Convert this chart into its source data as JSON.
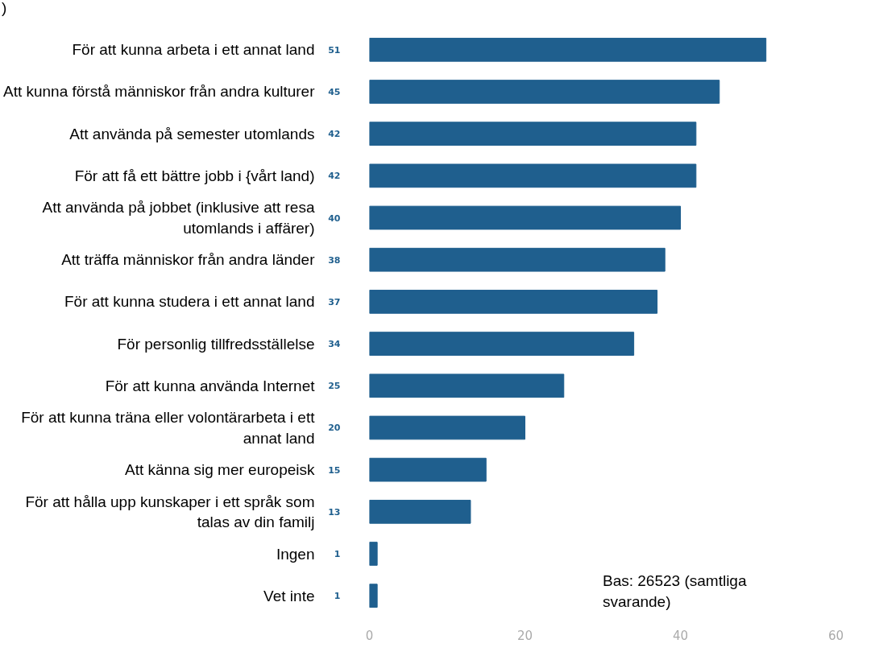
{
  "chart_data": {
    "type": "bar",
    "orientation": "horizontal",
    "title": ")",
    "categories": [
      "För att kunna arbeta i ett annat land",
      "Att kunna förstå människor från andra kulturer",
      "Att använda på semester utomlands",
      "För att få ett bättre jobb i {vårt land)",
      "Att använda på jobbet (inklusive att resa utomlands i affärer)",
      "Att träffa människor från andra länder",
      "För att kunna studera i ett annat land",
      "För personlig tillfredsställelse",
      "För att kunna använda Internet",
      "För att kunna träna eller volontärarbeta i ett annat land",
      "Att känna sig mer europeisk",
      "För att hålla upp kunskaper i ett språk som talas av din familj",
      "Ingen",
      "Vet inte"
    ],
    "values": [
      51,
      45,
      42,
      42,
      40,
      38,
      37,
      34,
      25,
      20,
      15,
      13,
      1,
      1
    ],
    "color": "#1f5f8e",
    "data_labels": true,
    "xlim": [
      0,
      60
    ],
    "xticks": [
      0,
      20,
      40,
      60
    ],
    "grid": false,
    "annotations": [
      "Bas: 26523 (samtliga svarande)"
    ]
  }
}
